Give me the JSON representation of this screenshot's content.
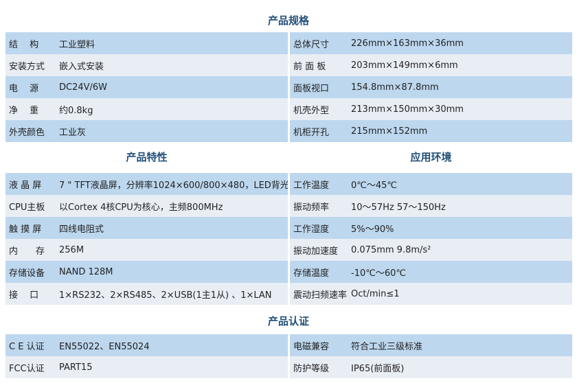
{
  "spec": {
    "title": "产品规格",
    "left": [
      {
        "label": "结　 构",
        "value": "工业塑料"
      },
      {
        "label": "安装方式",
        "value": "嵌入式安装"
      },
      {
        "label": "电　 源",
        "value": "DC24V/6W"
      },
      {
        "label": "净　 重",
        "value": "约0.8kg"
      },
      {
        "label": "外壳颜色",
        "value": "工业灰"
      }
    ],
    "right": [
      {
        "label": "总体尺寸",
        "value": "226mm×163mm×36mm"
      },
      {
        "label": "前 面 板",
        "value": "203mm×149mm×6mm"
      },
      {
        "label": "面板视口",
        "value": "154.8mm×87.8mm"
      },
      {
        "label": "机壳外型",
        "value": "213mm×150mm×30mm"
      },
      {
        "label": "机柜开孔",
        "value": "215mm×152mm"
      }
    ]
  },
  "features": {
    "title": "产品特性",
    "rows": [
      {
        "label": "液 晶 屏",
        "value": "7 \" TFT液晶屏，分辨率1024×600/800×480，LED背光"
      },
      {
        "label": "CPU主板",
        "value": "以Cortex 4核CPU为核心，主频800MHz"
      },
      {
        "label": "触 摸 屏",
        "value": "四线电阻式"
      },
      {
        "label": "内　　存",
        "value": "256M"
      },
      {
        "label": "存储设备",
        "value": "NAND 128M"
      },
      {
        "label": "接　 口",
        "value": "1×RS232、2×RS485、2×USB(1主1从) 、1×LAN"
      }
    ]
  },
  "environment": {
    "title": "应用环境",
    "rows": [
      {
        "label": "工作温度",
        "value": "0℃～45℃"
      },
      {
        "label": "振动频率",
        "value": "10～57Hz 57～150Hz"
      },
      {
        "label": "工作湿度",
        "value": "5%～90%"
      },
      {
        "label": "振动加速度",
        "value": "0.075mm 9.8m/s²"
      },
      {
        "label": "存储温度",
        "value": " -10℃～60℃"
      },
      {
        "label": "震动扫频速率",
        "value": "Oct/min≤1"
      }
    ]
  },
  "certification": {
    "title": "产品认证",
    "left": [
      {
        "label": "C E 认证",
        "value": "EN55022、EN55024"
      },
      {
        "label": "FCC认证",
        "value": "PART15"
      }
    ],
    "right": [
      {
        "label": "电磁兼容",
        "value": "符合工业三级标准"
      },
      {
        "label": "防护等级",
        "value": "IP65(前面板)"
      }
    ]
  }
}
